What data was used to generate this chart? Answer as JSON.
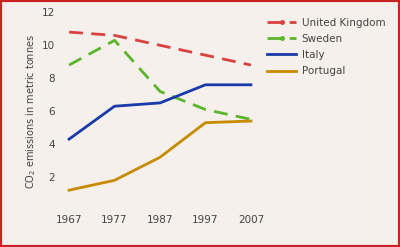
{
  "years": [
    1967,
    1977,
    1987,
    1997,
    2007
  ],
  "series": {
    "United Kingdom": [
      10.8,
      10.6,
      10.0,
      9.4,
      8.8
    ],
    "Sweden": [
      8.8,
      10.3,
      7.2,
      6.1,
      5.5
    ],
    "Italy": [
      4.3,
      6.3,
      6.5,
      7.6,
      7.6
    ],
    "Portugal": [
      1.2,
      1.8,
      3.2,
      5.3,
      5.4
    ]
  },
  "colors": {
    "United Kingdom": "#d94040",
    "Sweden": "#5ab52a",
    "Italy": "#1a3aaa",
    "Portugal": "#c88a00"
  },
  "linestyles": {
    "United Kingdom": "--",
    "Sweden": "--",
    "Italy": "-",
    "Portugal": "-"
  },
  "dash_dot": {
    "United Kingdom": true,
    "Sweden": true,
    "Italy": false,
    "Portugal": false
  },
  "ylabel": "CO$_2$ emissions in metric tonnes",
  "ylim": [
    0,
    12
  ],
  "yticks": [
    0,
    2,
    4,
    6,
    8,
    10,
    12
  ],
  "background_color": "#f5f0eb",
  "linewidth": 2.0,
  "border_color": "#cc2222"
}
